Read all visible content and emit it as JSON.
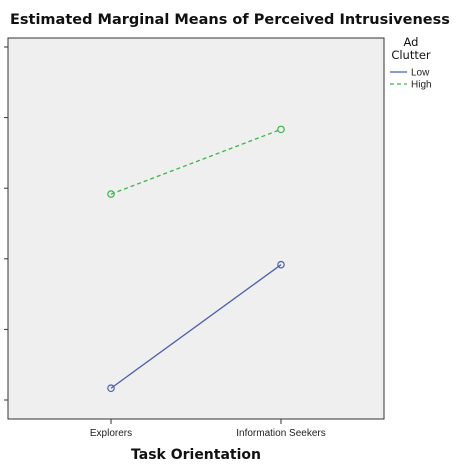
{
  "chart_data": {
    "type": "line",
    "title": "Estimated Marginal Means of Perceived Intrusiveness",
    "xlabel": "Task Orientation",
    "ylabel": "",
    "categories": [
      "Explorers",
      "Information Seekers"
    ],
    "ylim": [
      0,
      6
    ],
    "series": [
      {
        "name": "Low",
        "values": [
          0.2,
          2.3
        ],
        "color": "#4a5fb0",
        "dash": "solid",
        "marker": "circle"
      },
      {
        "name": "High",
        "values": [
          3.5,
          4.6
        ],
        "color": "#3cb44b",
        "dash": "dashed",
        "marker": "circle"
      }
    ],
    "legend": {
      "title_lines": [
        "Ad",
        "Clutter"
      ],
      "placement": "top-right, outside plot"
    },
    "plot_background": "#efefef",
    "grid": false
  }
}
